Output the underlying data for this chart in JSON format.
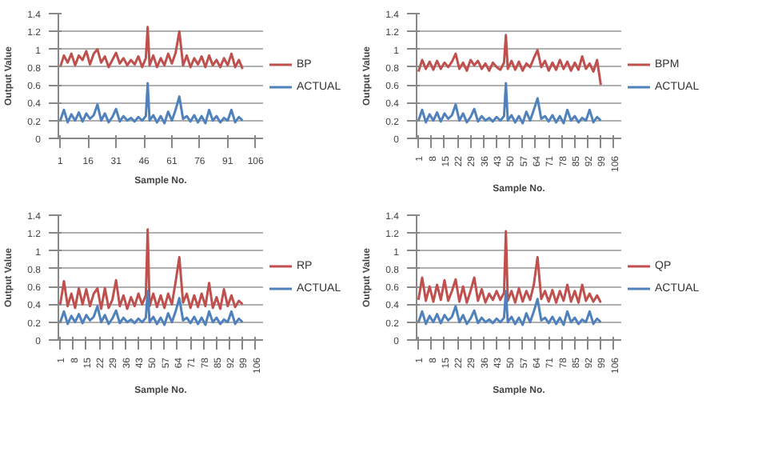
{
  "chart_data": [
    {
      "type": "line",
      "xlabel": "Sample No.",
      "ylabel": "Output Value",
      "xlim": [
        0,
        110
      ],
      "xticks": [
        1,
        16,
        31,
        46,
        61,
        76,
        91,
        106
      ],
      "ylim": [
        0,
        1.4
      ],
      "yticks": [
        0,
        0.2,
        0.4,
        0.6,
        0.8,
        1,
        1.2,
        1.4
      ],
      "grid": "y",
      "legend": "right",
      "marker": "none",
      "x": [
        1,
        3,
        5,
        7,
        9,
        11,
        13,
        15,
        17,
        19,
        21,
        23,
        25,
        27,
        29,
        31,
        33,
        35,
        37,
        39,
        41,
        43,
        45,
        47,
        48,
        49,
        51,
        53,
        55,
        57,
        59,
        61,
        63,
        65,
        67,
        69,
        71,
        73,
        75,
        77,
        79,
        81,
        83,
        85,
        87,
        89,
        91,
        93,
        95,
        97,
        99
      ],
      "series": [
        {
          "name": "BP",
          "color": "#c0504d",
          "values": [
            0.8,
            0.93,
            0.85,
            0.95,
            0.82,
            0.93,
            0.88,
            0.98,
            0.83,
            0.95,
            1.0,
            0.85,
            0.92,
            0.8,
            0.88,
            0.96,
            0.84,
            0.9,
            0.82,
            0.88,
            0.83,
            0.92,
            0.8,
            0.9,
            1.25,
            0.82,
            0.93,
            0.8,
            0.9,
            0.82,
            0.95,
            0.84,
            0.96,
            1.2,
            0.82,
            0.93,
            0.8,
            0.9,
            0.83,
            0.92,
            0.8,
            0.93,
            0.82,
            0.88,
            0.8,
            0.9,
            0.82,
            0.95,
            0.8,
            0.88,
            0.78
          ]
        },
        {
          "name": "ACTUAL",
          "color": "#4f81bd",
          "values": [
            0.2,
            0.32,
            0.18,
            0.27,
            0.2,
            0.29,
            0.19,
            0.28,
            0.22,
            0.26,
            0.38,
            0.2,
            0.28,
            0.18,
            0.24,
            0.33,
            0.19,
            0.25,
            0.2,
            0.23,
            0.19,
            0.24,
            0.2,
            0.25,
            0.62,
            0.2,
            0.26,
            0.18,
            0.25,
            0.17,
            0.3,
            0.2,
            0.32,
            0.47,
            0.22,
            0.25,
            0.19,
            0.26,
            0.18,
            0.25,
            0.17,
            0.32,
            0.2,
            0.25,
            0.18,
            0.23,
            0.2,
            0.32,
            0.18,
            0.24,
            0.2
          ]
        }
      ]
    },
    {
      "type": "line",
      "xlabel": "Sample No.",
      "ylabel": "Output Value",
      "xlim": [
        0,
        110
      ],
      "xticks": [
        1,
        8,
        15,
        22,
        29,
        36,
        43,
        50,
        57,
        64,
        71,
        78,
        85,
        92,
        99,
        106
      ],
      "ylim": [
        0,
        1.4
      ],
      "yticks": [
        0,
        0.2,
        0.4,
        0.6,
        0.8,
        1,
        1.2,
        1.4
      ],
      "grid": "y",
      "legend": "right",
      "marker": "none",
      "x": [
        1,
        3,
        5,
        7,
        9,
        11,
        13,
        15,
        17,
        19,
        21,
        23,
        25,
        27,
        29,
        31,
        33,
        35,
        37,
        39,
        41,
        43,
        45,
        47,
        48,
        49,
        51,
        53,
        55,
        57,
        59,
        61,
        63,
        65,
        67,
        69,
        71,
        73,
        75,
        77,
        79,
        81,
        83,
        85,
        87,
        89,
        91,
        93,
        95,
        97,
        99
      ],
      "series": [
        {
          "name": "BPM",
          "color": "#c0504d",
          "values": [
            0.75,
            0.88,
            0.78,
            0.86,
            0.77,
            0.87,
            0.78,
            0.85,
            0.8,
            0.86,
            0.95,
            0.78,
            0.85,
            0.76,
            0.88,
            0.82,
            0.87,
            0.78,
            0.84,
            0.76,
            0.85,
            0.8,
            0.77,
            0.85,
            1.16,
            0.78,
            0.87,
            0.77,
            0.86,
            0.76,
            0.84,
            0.8,
            0.9,
            0.99,
            0.8,
            0.87,
            0.76,
            0.85,
            0.77,
            0.88,
            0.78,
            0.86,
            0.76,
            0.85,
            0.77,
            0.92,
            0.78,
            0.84,
            0.75,
            0.88,
            0.6
          ]
        },
        {
          "name": "ACTUAL",
          "color": "#4f81bd",
          "values": [
            0.2,
            0.32,
            0.18,
            0.27,
            0.2,
            0.29,
            0.19,
            0.28,
            0.22,
            0.26,
            0.38,
            0.2,
            0.28,
            0.18,
            0.24,
            0.33,
            0.19,
            0.25,
            0.2,
            0.23,
            0.19,
            0.24,
            0.2,
            0.25,
            0.62,
            0.2,
            0.26,
            0.18,
            0.25,
            0.17,
            0.3,
            0.2,
            0.32,
            0.45,
            0.22,
            0.25,
            0.19,
            0.26,
            0.18,
            0.25,
            0.17,
            0.32,
            0.2,
            0.25,
            0.18,
            0.23,
            0.2,
            0.32,
            0.18,
            0.24,
            0.2
          ]
        }
      ]
    },
    {
      "type": "line",
      "xlabel": "Sample No.",
      "ylabel": "Output Value",
      "xlim": [
        0,
        110
      ],
      "xticks": [
        1,
        8,
        15,
        22,
        29,
        36,
        43,
        50,
        57,
        64,
        71,
        78,
        85,
        92,
        99,
        106
      ],
      "ylim": [
        0,
        1.4
      ],
      "yticks": [
        0,
        0.2,
        0.4,
        0.6,
        0.8,
        1,
        1.2,
        1.4
      ],
      "grid": "y",
      "legend": "right",
      "marker": "none",
      "x": [
        1,
        3,
        5,
        7,
        9,
        11,
        13,
        15,
        17,
        19,
        21,
        23,
        25,
        27,
        29,
        31,
        33,
        35,
        37,
        39,
        41,
        43,
        45,
        47,
        48,
        49,
        51,
        53,
        55,
        57,
        59,
        61,
        63,
        65,
        67,
        69,
        71,
        73,
        75,
        77,
        79,
        81,
        83,
        85,
        87,
        89,
        91,
        93,
        95,
        97,
        99
      ],
      "series": [
        {
          "name": "RP",
          "color": "#c0504d",
          "values": [
            0.4,
            0.66,
            0.38,
            0.52,
            0.36,
            0.58,
            0.4,
            0.57,
            0.38,
            0.52,
            0.58,
            0.35,
            0.58,
            0.36,
            0.45,
            0.67,
            0.38,
            0.5,
            0.35,
            0.48,
            0.38,
            0.52,
            0.4,
            0.5,
            1.24,
            0.38,
            0.52,
            0.37,
            0.5,
            0.36,
            0.52,
            0.4,
            0.65,
            0.93,
            0.42,
            0.52,
            0.36,
            0.5,
            0.37,
            0.52,
            0.38,
            0.64,
            0.36,
            0.48,
            0.35,
            0.57,
            0.38,
            0.5,
            0.37,
            0.44,
            0.4
          ]
        },
        {
          "name": "ACTUAL",
          "color": "#4f81bd",
          "values": [
            0.2,
            0.32,
            0.18,
            0.27,
            0.2,
            0.29,
            0.19,
            0.28,
            0.22,
            0.26,
            0.38,
            0.2,
            0.28,
            0.18,
            0.24,
            0.33,
            0.19,
            0.25,
            0.2,
            0.23,
            0.19,
            0.24,
            0.2,
            0.25,
            0.55,
            0.2,
            0.26,
            0.18,
            0.25,
            0.17,
            0.3,
            0.2,
            0.32,
            0.47,
            0.22,
            0.25,
            0.19,
            0.26,
            0.18,
            0.25,
            0.17,
            0.32,
            0.2,
            0.25,
            0.18,
            0.23,
            0.2,
            0.32,
            0.18,
            0.24,
            0.2
          ]
        }
      ]
    },
    {
      "type": "line",
      "xlabel": "Sample No.",
      "ylabel": "Output Value",
      "xlim": [
        0,
        110
      ],
      "xticks": [
        1,
        8,
        15,
        22,
        29,
        36,
        43,
        50,
        57,
        64,
        71,
        78,
        85,
        92,
        99,
        106
      ],
      "ylim": [
        0,
        1.4
      ],
      "yticks": [
        0,
        0.2,
        0.4,
        0.6,
        0.8,
        1,
        1.2,
        1.4
      ],
      "grid": "y",
      "legend": "right",
      "marker": "none",
      "x": [
        1,
        3,
        5,
        7,
        9,
        11,
        13,
        15,
        17,
        19,
        21,
        23,
        25,
        27,
        29,
        31,
        33,
        35,
        37,
        39,
        41,
        43,
        45,
        47,
        48,
        49,
        51,
        53,
        55,
        57,
        59,
        61,
        63,
        65,
        67,
        69,
        71,
        73,
        75,
        77,
        79,
        81,
        83,
        85,
        87,
        89,
        91,
        93,
        95,
        97,
        99
      ],
      "series": [
        {
          "name": "QP",
          "color": "#c0504d",
          "values": [
            0.45,
            0.7,
            0.44,
            0.6,
            0.43,
            0.62,
            0.45,
            0.67,
            0.44,
            0.55,
            0.68,
            0.43,
            0.6,
            0.42,
            0.55,
            0.7,
            0.44,
            0.57,
            0.42,
            0.52,
            0.45,
            0.55,
            0.45,
            0.53,
            1.22,
            0.44,
            0.55,
            0.42,
            0.58,
            0.43,
            0.55,
            0.45,
            0.62,
            0.93,
            0.46,
            0.55,
            0.43,
            0.56,
            0.42,
            0.55,
            0.44,
            0.62,
            0.43,
            0.55,
            0.42,
            0.62,
            0.44,
            0.52,
            0.43,
            0.5,
            0.42
          ]
        },
        {
          "name": "ACTUAL",
          "color": "#4f81bd",
          "values": [
            0.2,
            0.32,
            0.18,
            0.27,
            0.2,
            0.29,
            0.19,
            0.28,
            0.22,
            0.26,
            0.38,
            0.2,
            0.28,
            0.18,
            0.24,
            0.33,
            0.19,
            0.25,
            0.2,
            0.23,
            0.19,
            0.24,
            0.2,
            0.25,
            0.55,
            0.2,
            0.26,
            0.18,
            0.25,
            0.17,
            0.3,
            0.2,
            0.32,
            0.46,
            0.22,
            0.25,
            0.19,
            0.26,
            0.18,
            0.25,
            0.17,
            0.32,
            0.2,
            0.25,
            0.18,
            0.23,
            0.2,
            0.32,
            0.18,
            0.24,
            0.2
          ]
        }
      ]
    }
  ]
}
